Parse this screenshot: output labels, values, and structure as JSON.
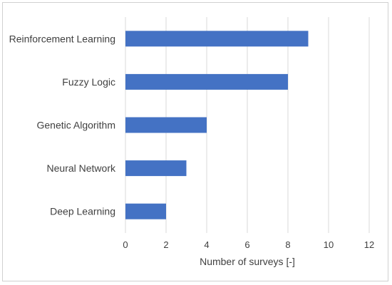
{
  "chart_data": {
    "type": "bar",
    "orientation": "horizontal",
    "categories": [
      "Reinforcement Learning",
      "Fuzzy Logic",
      "Genetic Algorithm",
      "Neural Network",
      "Deep Learning"
    ],
    "values": [
      9,
      8,
      4,
      3,
      2
    ],
    "xlabel": "Number of surveys [-]",
    "ylabel": "",
    "title": "",
    "xlim": [
      0,
      12
    ],
    "xticks": [
      "0",
      "2",
      "4",
      "6",
      "8",
      "10",
      "12"
    ],
    "grid": "vertical",
    "legend": "none",
    "bar_color": "#4472c4",
    "grid_color": "#d9d9d9"
  }
}
